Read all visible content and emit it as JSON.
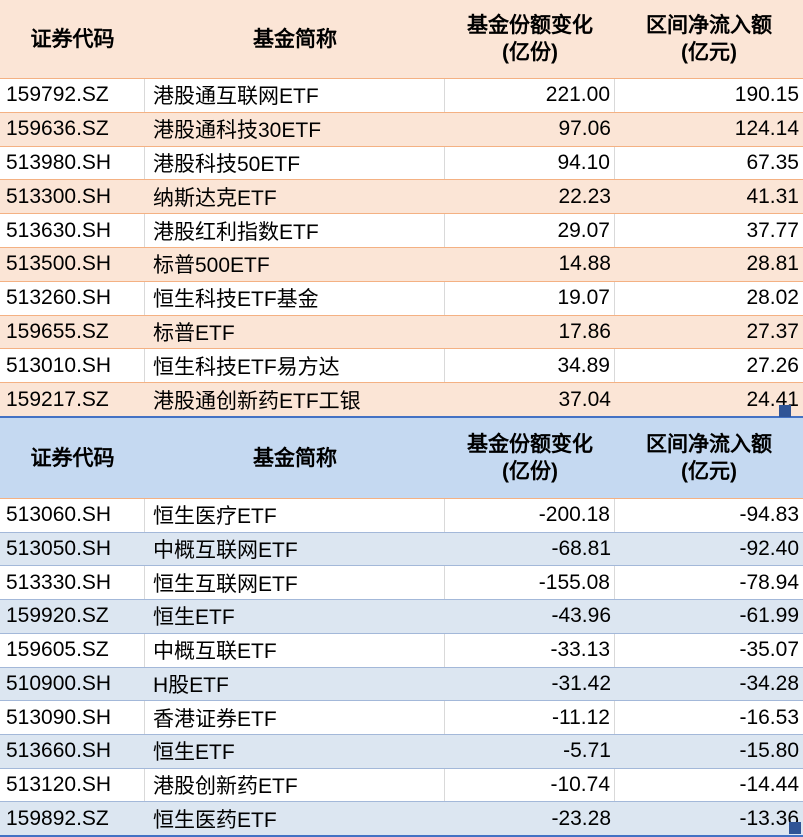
{
  "colors": {
    "peach_bg": "#FBE5D6",
    "orange_line": "#F4B183",
    "blue_header_bg": "#C5D9F1",
    "blue_row_bg": "#DCE6F1",
    "blue_line": "#A3B8D9",
    "divider_blue": "#4472C4",
    "handle_blue": "#2F5496",
    "grid_gray": "#D9D9D9"
  },
  "inflow_table": {
    "headers": {
      "code": "证券代码",
      "name": "基金简称",
      "share_change_line1": "基金份额变化",
      "share_change_line2": "(亿份)",
      "net_flow_line1": "区间净流入额",
      "net_flow_line2": "(亿元)"
    },
    "rows": [
      {
        "code": "159792.SZ",
        "name": "港股通互联网ETF",
        "share_change": "221.00",
        "net_flow": "190.15"
      },
      {
        "code": "159636.SZ",
        "name": "港股通科技30ETF",
        "share_change": "97.06",
        "net_flow": "124.14"
      },
      {
        "code": "513980.SH",
        "name": "港股科技50ETF",
        "share_change": "94.10",
        "net_flow": "67.35"
      },
      {
        "code": "513300.SH",
        "name": "纳斯达克ETF",
        "share_change": "22.23",
        "net_flow": "41.31"
      },
      {
        "code": "513630.SH",
        "name": "港股红利指数ETF",
        "share_change": "29.07",
        "net_flow": "37.77"
      },
      {
        "code": "513500.SH",
        "name": "标普500ETF",
        "share_change": "14.88",
        "net_flow": "28.81"
      },
      {
        "code": "513260.SH",
        "name": "恒生科技ETF基金",
        "share_change": "19.07",
        "net_flow": "28.02"
      },
      {
        "code": "159655.SZ",
        "name": "标普ETF",
        "share_change": "17.86",
        "net_flow": "27.37"
      },
      {
        "code": "513010.SH",
        "name": "恒生科技ETF易方达",
        "share_change": "34.89",
        "net_flow": "27.26"
      },
      {
        "code": "159217.SZ",
        "name": "港股通创新药ETF工银",
        "share_change": "37.04",
        "net_flow": "24.41"
      }
    ]
  },
  "outflow_table": {
    "headers": {
      "code": "证券代码",
      "name": "基金简称",
      "share_change_line1": "基金份额变化",
      "share_change_line2": "(亿份)",
      "net_flow_line1": "区间净流入额",
      "net_flow_line2": "(亿元)"
    },
    "rows": [
      {
        "code": "513060.SH",
        "name": "恒生医疗ETF",
        "share_change": "-200.18",
        "net_flow": "-94.83"
      },
      {
        "code": "513050.SH",
        "name": "中概互联网ETF",
        "share_change": "-68.81",
        "net_flow": "-92.40"
      },
      {
        "code": "513330.SH",
        "name": "恒生互联网ETF",
        "share_change": "-155.08",
        "net_flow": "-78.94"
      },
      {
        "code": "159920.SZ",
        "name": "恒生ETF",
        "share_change": "-43.96",
        "net_flow": "-61.99"
      },
      {
        "code": "159605.SZ",
        "name": "中概互联ETF",
        "share_change": "-33.13",
        "net_flow": "-35.07"
      },
      {
        "code": "510900.SH",
        "name": "H股ETF",
        "share_change": "-31.42",
        "net_flow": "-34.28"
      },
      {
        "code": "513090.SH",
        "name": "香港证券ETF",
        "share_change": "-11.12",
        "net_flow": "-16.53"
      },
      {
        "code": "513660.SH",
        "name": "恒生ETF",
        "share_change": "-5.71",
        "net_flow": "-15.80"
      },
      {
        "code": "513120.SH",
        "name": "港股创新药ETF",
        "share_change": "-10.74",
        "net_flow": "-14.44"
      },
      {
        "code": "159892.SZ",
        "name": "恒生医药ETF",
        "share_change": "-23.28",
        "net_flow": "-13.36"
      }
    ]
  }
}
